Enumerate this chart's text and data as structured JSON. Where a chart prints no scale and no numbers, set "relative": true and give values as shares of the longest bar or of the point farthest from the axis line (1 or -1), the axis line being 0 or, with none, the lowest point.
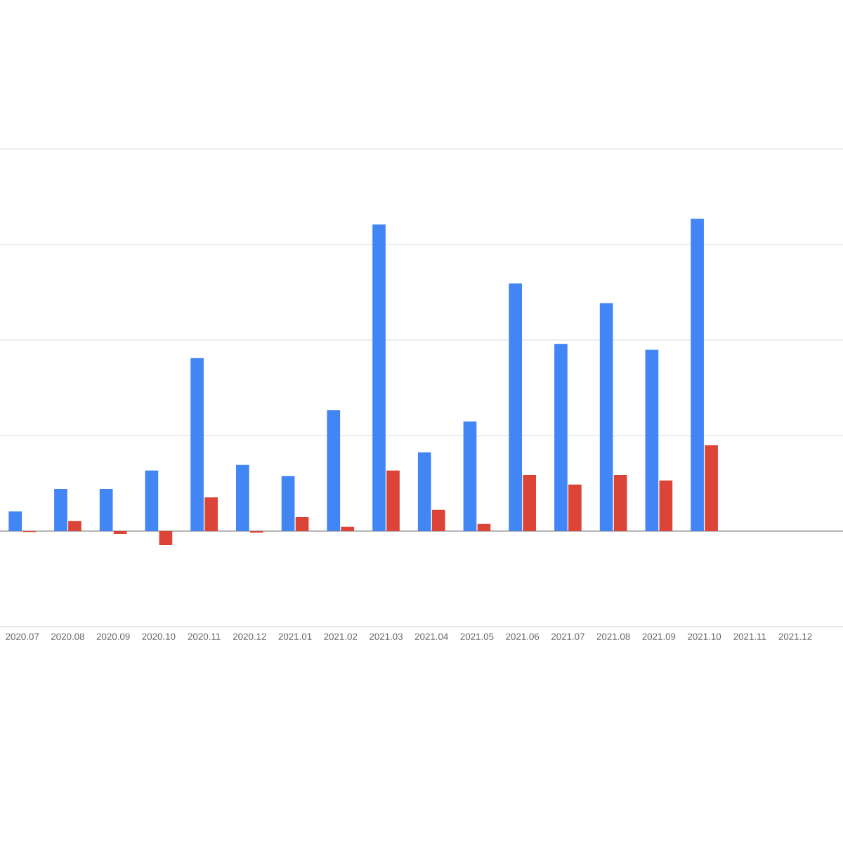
{
  "chart_data": {
    "type": "bar",
    "relative": true,
    "grid": "y",
    "categories": [
      "2020.07",
      "2020.08",
      "2020.09",
      "2020.10",
      "2020.11",
      "2020.12",
      "2021.01",
      "2021.02",
      "2021.03",
      "2021.04",
      "2021.05",
      "2021.06",
      "2021.07",
      "2021.08",
      "2021.09",
      "2021.10",
      "2021.11",
      "2021.12"
    ],
    "series": [
      {
        "color": "#4285f4",
        "values": [
          0.063,
          0.135,
          0.135,
          0.194,
          0.554,
          0.212,
          0.176,
          0.387,
          0.982,
          0.252,
          0.351,
          0.793,
          0.599,
          0.73,
          0.581,
          1,
          null,
          null
        ]
      },
      {
        "color": "#db4437",
        "values": [
          -0.003,
          0.032,
          -0.009,
          -0.045,
          0.108,
          -0.005,
          0.045,
          0.014,
          0.194,
          0.068,
          0.023,
          0.18,
          0.149,
          0.18,
          0.162,
          0.275,
          null,
          null
        ]
      }
    ]
  }
}
